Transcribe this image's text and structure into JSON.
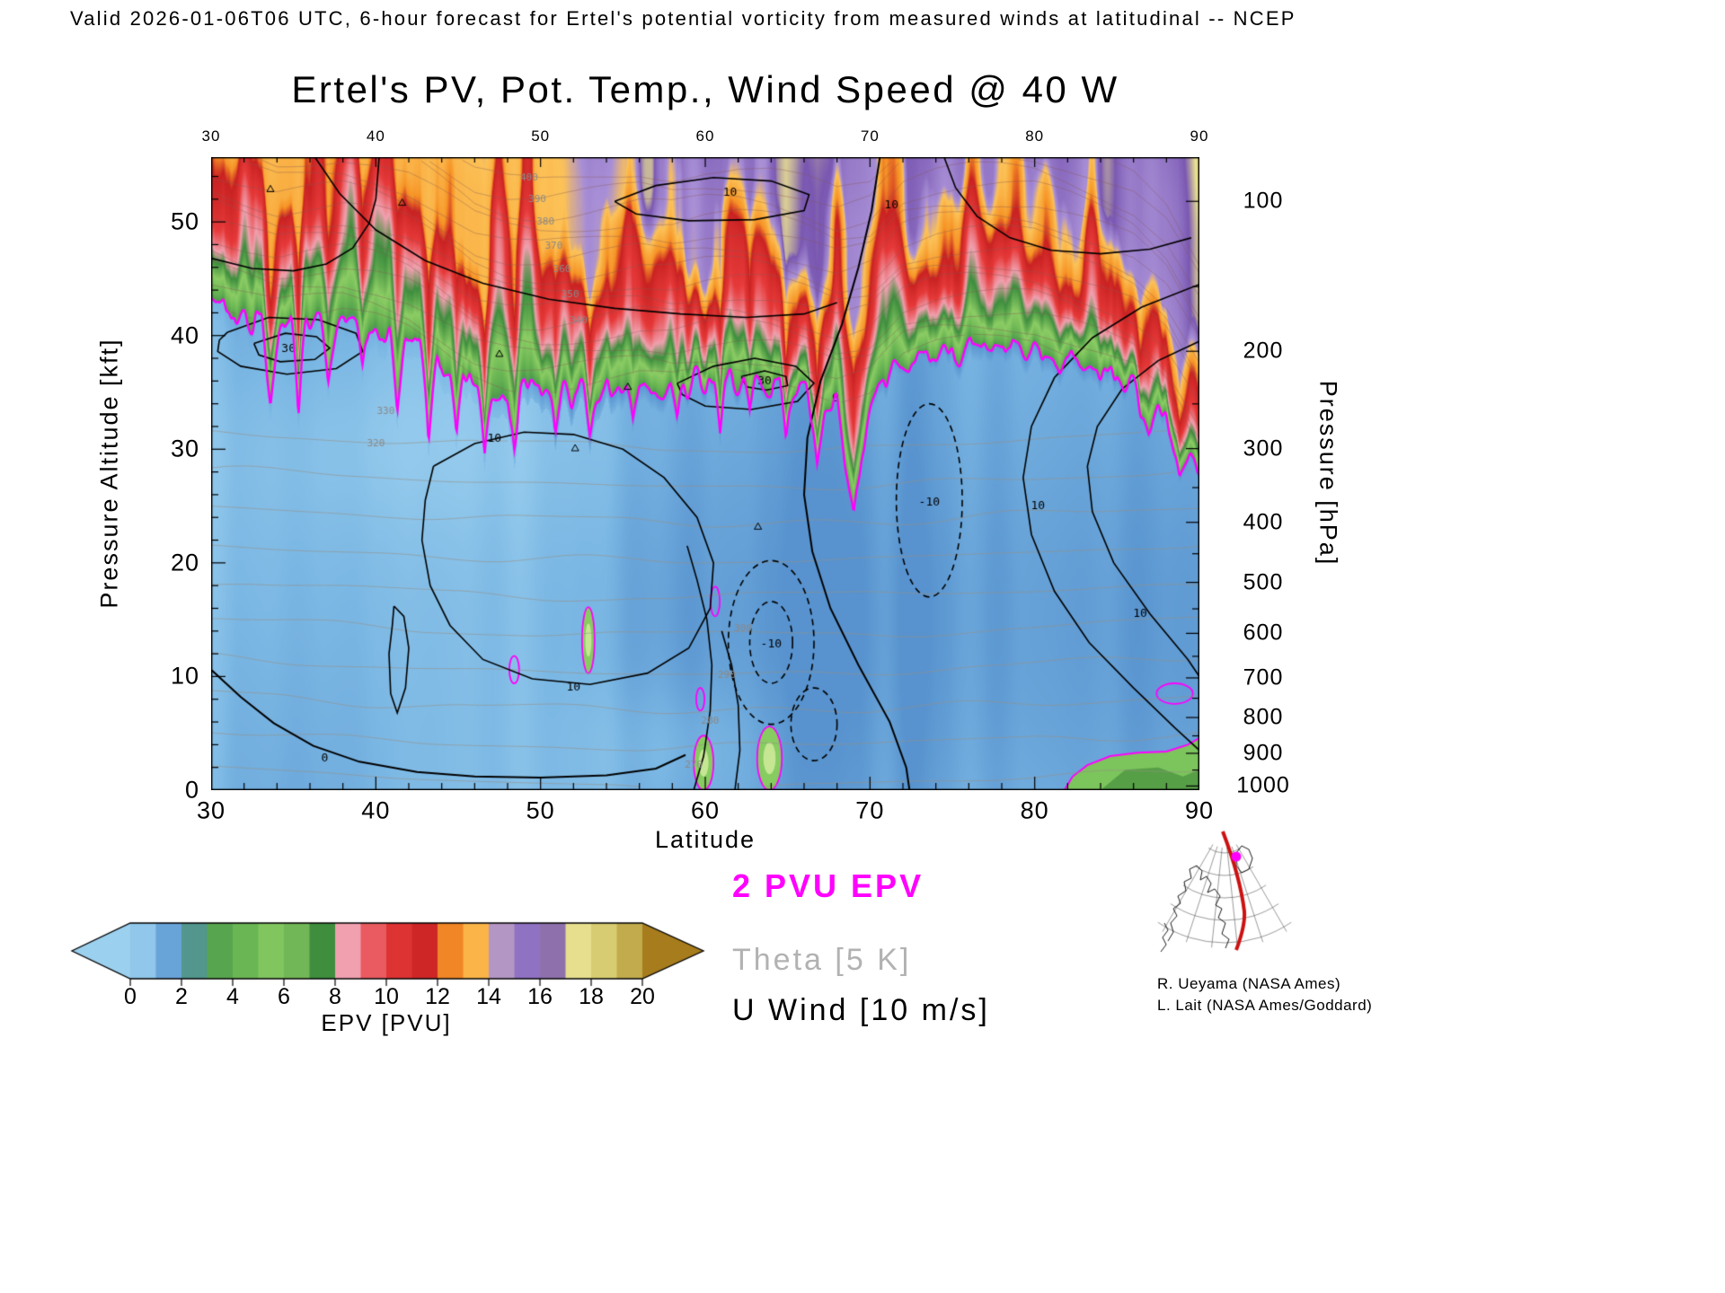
{
  "header": {
    "text": "Valid 2026-01-06T06 UTC, 6-hour forecast for Ertel's potential vorticity from measured winds at latitudinal -- NCEP"
  },
  "credits": {
    "line1": "R. Ueyama  (NASA Ames)",
    "line2": "L. Lait  (NASA Ames/Goddard)"
  },
  "chart_data": {
    "type": "heatmap",
    "title": "Ertel's PV, Pot. Temp., Wind Speed @ 40 W",
    "xlabel": "Latitude",
    "ylabel_left": "Pressure Altitude [kft]",
    "ylabel_right": "Pressure [hPa]",
    "x_range": [
      30,
      90
    ],
    "altitude_range_kft": [
      0,
      55.7
    ],
    "x_ticks": [
      30,
      40,
      50,
      60,
      70,
      80,
      90
    ],
    "x_minor_step": 2,
    "y_left_ticks": [
      0,
      10,
      20,
      30,
      40,
      50
    ],
    "y_left_minor_step": 2,
    "y_right_ticks": [
      100,
      200,
      300,
      400,
      500,
      600,
      700,
      800,
      900,
      1000
    ],
    "y_right_minor_ticks": [
      150,
      250,
      350,
      450,
      550,
      650,
      750,
      850,
      950
    ],
    "colorbar": {
      "label": "EPV [PVU]",
      "ticks": [
        0,
        2,
        4,
        6,
        8,
        10,
        12,
        14,
        16,
        18,
        20
      ],
      "stops": [
        [
          0,
          "#a4d6f2"
        ],
        [
          1,
          "#7cb8e4"
        ],
        [
          2,
          "#5590cd"
        ],
        [
          3,
          "#4f9c4c"
        ],
        [
          4.5,
          "#6ab654"
        ],
        [
          6,
          "#8ccc64"
        ],
        [
          7.5,
          "#3e8e3e"
        ],
        [
          8.5,
          "#f0a0ae"
        ],
        [
          10,
          "#e63939"
        ],
        [
          11.8,
          "#c92222"
        ],
        [
          12.6,
          "#f69426"
        ],
        [
          13.9,
          "#fcc257"
        ],
        [
          14.6,
          "#a88fd6"
        ],
        [
          16.3,
          "#7a58b2"
        ],
        [
          17.4,
          "#e9e191"
        ],
        [
          19,
          "#cfc263"
        ],
        [
          20.5,
          "#a67c1d"
        ]
      ]
    },
    "legend": [
      {
        "label": "2 PVU EPV",
        "color": "#ff00ff"
      },
      {
        "label": "Theta [5 K]",
        "color": "#b2b2b2"
      },
      {
        "label": "U Wind [10 m/s]",
        "color": "#000000"
      }
    ],
    "tropopause_2pvu": {
      "lat": [
        30,
        32,
        34,
        36,
        38,
        40,
        42,
        44,
        46,
        48,
        50,
        52,
        54,
        56,
        58,
        60,
        62,
        64,
        66,
        68,
        70,
        72,
        74,
        76,
        78,
        80,
        82,
        84,
        86,
        88,
        90
      ],
      "kft": [
        42.5,
        41.5,
        40.6,
        40.9,
        41.2,
        40.6,
        39.6,
        37.8,
        35.8,
        34.9,
        34.6,
        34.9,
        35.3,
        35.7,
        35.4,
        35.9,
        36.0,
        35.7,
        34.9,
        33.8,
        34.5,
        37.6,
        38.4,
        38.7,
        38.7,
        38.5,
        37.6,
        36.5,
        35.2,
        32.5,
        27.5
      ]
    },
    "tropopause_notches": [
      {
        "c": 33.6,
        "w": 0.55,
        "d": 6.5
      },
      {
        "c": 35.3,
        "w": 0.45,
        "d": 8.5
      },
      {
        "c": 37.1,
        "w": 0.5,
        "d": 5
      },
      {
        "c": 39.2,
        "w": 0.4,
        "d": 3.5
      },
      {
        "c": 41.3,
        "w": 0.5,
        "d": 7.5
      },
      {
        "c": 43.2,
        "w": 0.55,
        "d": 9
      },
      {
        "c": 44.9,
        "w": 0.4,
        "d": 5
      },
      {
        "c": 46.6,
        "w": 0.45,
        "d": 6
      },
      {
        "c": 48.4,
        "w": 0.4,
        "d": 4.5
      },
      {
        "c": 50.9,
        "w": 0.35,
        "d": 3
      },
      {
        "c": 53.0,
        "w": 0.4,
        "d": 3.5
      },
      {
        "c": 55.6,
        "w": 0.4,
        "d": 3.2
      },
      {
        "c": 58.3,
        "w": 0.4,
        "d": 3.6
      },
      {
        "c": 60.9,
        "w": 0.35,
        "d": 4.2
      },
      {
        "c": 62.7,
        "w": 0.4,
        "d": 3.4
      },
      {
        "c": 64.9,
        "w": 0.4,
        "d": 3.8
      },
      {
        "c": 66.8,
        "w": 0.5,
        "d": 5
      },
      {
        "c": 69.0,
        "w": 1.0,
        "d": 11
      },
      {
        "c": 86.9,
        "w": 0.6,
        "d": 3
      },
      {
        "c": 88.8,
        "w": 0.7,
        "d": 3
      }
    ],
    "wind_contours": [
      {
        "pts": [
          [
            70.6,
            55.7
          ],
          [
            70.1,
            51
          ],
          [
            69.3,
            46
          ],
          [
            68.3,
            41
          ],
          [
            67.0,
            36
          ],
          [
            66.2,
            31
          ],
          [
            66.0,
            26
          ],
          [
            66.5,
            21
          ],
          [
            67.6,
            16
          ],
          [
            69.3,
            11
          ],
          [
            71.2,
            6
          ],
          [
            72.2,
            2
          ],
          [
            72.4,
            0
          ]
        ],
        "w": 2.0
      },
      {
        "pts": [
          [
            43.5,
            28.5
          ],
          [
            46,
            30.5
          ],
          [
            49,
            31.5
          ],
          [
            52,
            31.3
          ],
          [
            55,
            30
          ],
          [
            57.5,
            27.5
          ],
          [
            59.5,
            24
          ],
          [
            60.5,
            20
          ],
          [
            60.3,
            16
          ],
          [
            59,
            12.5
          ],
          [
            56.5,
            10.3
          ],
          [
            53,
            9.3
          ],
          [
            49.5,
            9.8
          ],
          [
            46.5,
            11.5
          ],
          [
            44.5,
            14.5
          ],
          [
            43.3,
            18
          ],
          [
            42.8,
            22
          ],
          [
            43,
            25.5
          ],
          [
            43.5,
            28.5
          ]
        ]
      },
      {
        "pts": [
          [
            32.6,
            39.3
          ],
          [
            34.5,
            40.2
          ],
          [
            36.4,
            39.9
          ],
          [
            37.2,
            38.9
          ],
          [
            36.3,
            37.9
          ],
          [
            34.2,
            37.7
          ],
          [
            32.9,
            38.3
          ],
          [
            32.6,
            39.3
          ]
        ]
      },
      {
        "pts": [
          [
            31.0,
            40.3
          ],
          [
            33.5,
            41.6
          ],
          [
            36.5,
            41.4
          ],
          [
            38.8,
            40.2
          ],
          [
            39.2,
            38.6
          ],
          [
            37.6,
            37.1
          ],
          [
            34.6,
            36.6
          ],
          [
            31.8,
            37.3
          ],
          [
            30.4,
            38.6
          ],
          [
            30.5,
            39.6
          ],
          [
            31.0,
            40.3
          ]
        ]
      },
      {
        "pts": [
          [
            58.3,
            35.8
          ],
          [
            60.5,
            37.3
          ],
          [
            63,
            38
          ],
          [
            65.5,
            37.3
          ],
          [
            66.6,
            35.8
          ],
          [
            65.6,
            34.2
          ],
          [
            62.8,
            33.5
          ],
          [
            60,
            33.8
          ],
          [
            58.6,
            34.8
          ],
          [
            58.3,
            35.8
          ]
        ]
      },
      {
        "pts": [
          [
            62.2,
            36.4
          ],
          [
            63.6,
            36.9
          ],
          [
            64.9,
            36.4
          ],
          [
            65.0,
            35.6
          ],
          [
            63.7,
            35.2
          ],
          [
            62.5,
            35.5
          ],
          [
            62.2,
            36.4
          ]
        ]
      },
      {
        "pts": [
          [
            36.3,
            55.7
          ],
          [
            37.8,
            52.5
          ],
          [
            40,
            49.3
          ],
          [
            43,
            46.6
          ],
          [
            46.5,
            44.6
          ],
          [
            50.5,
            43.2
          ],
          [
            54.5,
            42.4
          ],
          [
            58.5,
            41.9
          ],
          [
            62.5,
            41.6
          ],
          [
            66,
            41.9
          ],
          [
            68,
            42.9
          ]
        ]
      },
      {
        "pts": [
          [
            30,
            46.8
          ],
          [
            32.5,
            45.9
          ],
          [
            35,
            45.7
          ],
          [
            37,
            46.3
          ],
          [
            38.6,
            47.7
          ],
          [
            39.6,
            49.9
          ],
          [
            40,
            52
          ],
          [
            40.2,
            55.7
          ]
        ]
      },
      {
        "pts": [
          [
            54.5,
            51.8
          ],
          [
            57,
            53.2
          ],
          [
            60.5,
            53.9
          ],
          [
            64,
            53.6
          ],
          [
            66.3,
            52.4
          ],
          [
            66,
            51
          ],
          [
            63,
            50.2
          ],
          [
            59,
            50.1
          ],
          [
            55.8,
            50.7
          ],
          [
            54.5,
            51.8
          ]
        ]
      },
      {
        "pts": [
          [
            90,
            44.5
          ],
          [
            86.5,
            42.5
          ],
          [
            83.5,
            39.8
          ],
          [
            81.2,
            36.3
          ],
          [
            79.8,
            32
          ],
          [
            79.3,
            27.5
          ],
          [
            79.8,
            22.5
          ],
          [
            81.2,
            17.5
          ],
          [
            83.3,
            13
          ],
          [
            86,
            9
          ],
          [
            88.5,
            5.5
          ],
          [
            90,
            3.5
          ]
        ]
      },
      {
        "pts": [
          [
            90,
            39.5
          ],
          [
            87.5,
            37.8
          ],
          [
            85.3,
            35.3
          ],
          [
            83.8,
            32
          ],
          [
            83.2,
            28.5
          ],
          [
            83.5,
            24.5
          ],
          [
            84.8,
            20
          ],
          [
            87,
            15.5
          ],
          [
            89.3,
            11.5
          ],
          [
            90,
            10
          ]
        ]
      },
      {
        "pts": [
          [
            30,
            10.6
          ],
          [
            31.8,
            8.2
          ],
          [
            33.8,
            5.9
          ],
          [
            36.2,
            3.9
          ],
          [
            39,
            2.5
          ],
          [
            42.5,
            1.6
          ],
          [
            46,
            1.2
          ],
          [
            50,
            1.1
          ],
          [
            54,
            1.3
          ],
          [
            57,
            1.9
          ],
          [
            58.8,
            3.1
          ]
        ],
        "w": 2.0
      },
      {
        "pts": [
          [
            41.1,
            16.2
          ],
          [
            41.7,
            15.3
          ],
          [
            42.0,
            12.5
          ],
          [
            41.8,
            9.0
          ],
          [
            41.3,
            6.8
          ],
          [
            40.9,
            8.5
          ],
          [
            40.8,
            12.0
          ],
          [
            41.0,
            14.5
          ],
          [
            41.1,
            16.2
          ]
        ]
      },
      {
        "pts": [
          [
            59.3,
            0
          ],
          [
            59.9,
            3
          ],
          [
            60.3,
            7
          ],
          [
            60.4,
            11
          ],
          [
            60.1,
            15
          ],
          [
            59.5,
            18.5
          ],
          [
            58.9,
            21.5
          ]
        ]
      },
      {
        "pts": [
          [
            61.8,
            0
          ],
          [
            62.1,
            3.5
          ],
          [
            62.0,
            7.5
          ],
          [
            61.6,
            11
          ],
          [
            61.0,
            14
          ]
        ]
      },
      {
        "pts": [
          [
            74.5,
            55.7
          ],
          [
            75.2,
            53
          ],
          [
            76.5,
            50.5
          ],
          [
            78.5,
            48.6
          ],
          [
            81,
            47.5
          ],
          [
            84,
            47.2
          ],
          [
            87,
            47.6
          ],
          [
            89.5,
            48.6
          ]
        ]
      },
      {
        "ellipse": [
          64,
          13,
          2.6,
          7.2
        ],
        "dashed": true
      },
      {
        "ellipse": [
          64,
          13,
          1.3,
          3.6
        ],
        "dashed": true
      },
      {
        "ellipse": [
          73.6,
          25.5,
          2.0,
          8.5
        ],
        "dashed": true
      },
      {
        "ellipse": [
          66.6,
          5.8,
          1.4,
          3.2
        ],
        "dashed": true
      }
    ],
    "wind_labels": [
      [
        67.9,
        34.5,
        "0"
      ],
      [
        34.7,
        38.8,
        "30"
      ],
      [
        63.6,
        36.0,
        "30"
      ],
      [
        47.2,
        30.9,
        "10"
      ],
      [
        52.0,
        9.0,
        "10"
      ],
      [
        61.5,
        52.6,
        "10"
      ],
      [
        71.3,
        51.5,
        "10"
      ],
      [
        64.0,
        12.8,
        "-10"
      ],
      [
        73.6,
        25.3,
        "-10"
      ],
      [
        36.9,
        2.8,
        "0"
      ],
      [
        80.2,
        25.0,
        "10"
      ],
      [
        86.4,
        15.5,
        "10"
      ]
    ],
    "theta_labels": [
      [
        52.3,
        41.3,
        "340"
      ],
      [
        51.8,
        43.6,
        "350"
      ],
      [
        51.3,
        45.8,
        "360"
      ],
      [
        50.8,
        47.9,
        "370"
      ],
      [
        50.3,
        50.0,
        "380"
      ],
      [
        49.8,
        52.0,
        "390"
      ],
      [
        49.3,
        53.9,
        "400"
      ],
      [
        62.3,
        14.2,
        "300"
      ],
      [
        61.3,
        10.1,
        "290"
      ],
      [
        60.3,
        6.1,
        "280"
      ],
      [
        59.3,
        2.2,
        "270"
      ],
      [
        40.0,
        30.5,
        "320"
      ],
      [
        40.6,
        33.3,
        "330"
      ]
    ],
    "pv_anomalies": [
      {
        "c": [
          59.9,
          2.4
        ],
        "r": [
          0.6,
          2.4
        ]
      },
      {
        "c": [
          63.9,
          2.8
        ],
        "r": [
          0.75,
          2.8
        ]
      },
      {
        "c": [
          52.9,
          13.2
        ],
        "r": [
          0.38,
          2.9
        ]
      },
      {
        "c": [
          48.4,
          10.6
        ],
        "r": [
          0.3,
          1.2
        ],
        "outline_only": true
      },
      {
        "c": [
          60.6,
          16.6
        ],
        "r": [
          0.28,
          1.3
        ],
        "outline_only": true
      },
      {
        "c": [
          59.7,
          8.0
        ],
        "r": [
          0.25,
          1.0
        ],
        "outline_only": true
      },
      {
        "c": [
          88.5,
          8.5
        ],
        "r": [
          1.1,
          0.9
        ],
        "outline_only": true
      }
    ],
    "surface_pv_patch": [
      [
        81.8,
        0
      ],
      [
        82.3,
        1.2
      ],
      [
        83.2,
        2.2
      ],
      [
        84.6,
        3.0
      ],
      [
        86.3,
        3.3
      ],
      [
        88.0,
        3.4
      ],
      [
        89.3,
        4.0
      ],
      [
        90,
        4.6
      ],
      [
        90,
        0
      ]
    ],
    "extrema_markers": [
      [
        33.6,
        52.9
      ],
      [
        41.6,
        51.7
      ],
      [
        47.5,
        38.4
      ],
      [
        52.1,
        30.1
      ],
      [
        63.2,
        23.2
      ],
      [
        55.3,
        35.5
      ]
    ]
  }
}
